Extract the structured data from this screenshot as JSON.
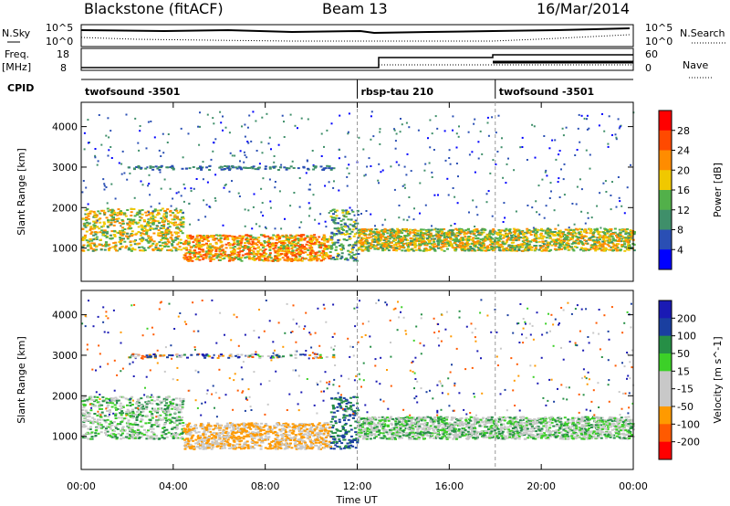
{
  "header": {
    "station": "Blackstone (fitACF)",
    "beam": "Beam 13",
    "date": "16/Mar/2014"
  },
  "top_panels": {
    "nsky_label": "N.Sky",
    "nsearch_label": "N.Search",
    "nsky_ticks": [
      "10^5",
      "10^0"
    ],
    "nsearch_ticks": [
      "10^5",
      "10^0"
    ],
    "freq_label_1": "Freq.",
    "freq_label_2": "[MHz]",
    "freq_ticks": [
      "18",
      "8"
    ],
    "nave_label": "Nave",
    "nave_ticks": [
      "60",
      "0"
    ],
    "cpid_label": "CPID"
  },
  "cpid_segments": [
    {
      "name": "twofsound -3501",
      "start": 0
    },
    {
      "name": "rbsp-tau 210",
      "start": 12
    },
    {
      "name": "twofsound -3501",
      "start": 18
    }
  ],
  "colors": {
    "power_scale": [
      "#0000ff",
      "#2a4fb4",
      "#3f8f6a",
      "#52b04a",
      "#f0c800",
      "#ff8c00",
      "#ff4a00",
      "#ff0000"
    ],
    "velocity_scale": [
      "#ff0000",
      "#ff5a00",
      "#ff9a00",
      "#c8c8c8",
      "#c8c8c8",
      "#3cd028",
      "#268f46",
      "#1a3fa0",
      "#1a1ab4"
    ]
  },
  "chart_data": [
    {
      "type": "heatmap",
      "panel": "power",
      "ylabel": "Slant Range [km]",
      "yticks": [
        1000,
        2000,
        3000,
        4000
      ],
      "ylim": [
        180,
        4600
      ],
      "xlim": [
        0,
        24
      ],
      "colorbar_label": "Power [dB]",
      "colorbar_ticks": [
        "28",
        "24",
        "20",
        "16",
        "12",
        "8",
        "4"
      ],
      "bands": [
        {
          "t0": 0.0,
          "t1": 4.4,
          "r0": 950,
          "r1": 2000,
          "value": 24
        },
        {
          "t0": 4.4,
          "t1": 10.8,
          "r0": 700,
          "r1": 1350,
          "value": 28
        },
        {
          "t0": 10.8,
          "t1": 12.0,
          "r0": 700,
          "r1": 2000,
          "value": 20
        },
        {
          "t0": 12.0,
          "t1": 24.0,
          "r0": 950,
          "r1": 1500,
          "value": 24
        }
      ]
    },
    {
      "type": "heatmap",
      "panel": "velocity",
      "ylabel": "Slant Range [km]",
      "yticks": [
        1000,
        2000,
        3000,
        4000
      ],
      "ylim": [
        180,
        4600
      ],
      "xlim": [
        0,
        24
      ],
      "colorbar_label": "Velocity [m s^-1]",
      "colorbar_ticks": [
        "200",
        "100",
        "50",
        "15",
        "-15",
        "-50",
        "-100",
        "-200"
      ],
      "bands": [
        {
          "t0": 0.0,
          "t1": 4.4,
          "r0": 950,
          "r1": 2000,
          "value": 0
        },
        {
          "t0": 4.4,
          "t1": 10.8,
          "r0": 700,
          "r1": 1350,
          "value": -50
        },
        {
          "t0": 10.8,
          "t1": 12.0,
          "r0": 700,
          "r1": 2000,
          "value": 50
        },
        {
          "t0": 12.0,
          "t1": 24.0,
          "r0": 950,
          "r1": 1500,
          "value": 0
        }
      ]
    }
  ],
  "x_axis": {
    "label": "Time UT",
    "ticks": [
      "00:00",
      "04:00",
      "08:00",
      "12:00",
      "16:00",
      "20:00",
      "00:00"
    ]
  }
}
